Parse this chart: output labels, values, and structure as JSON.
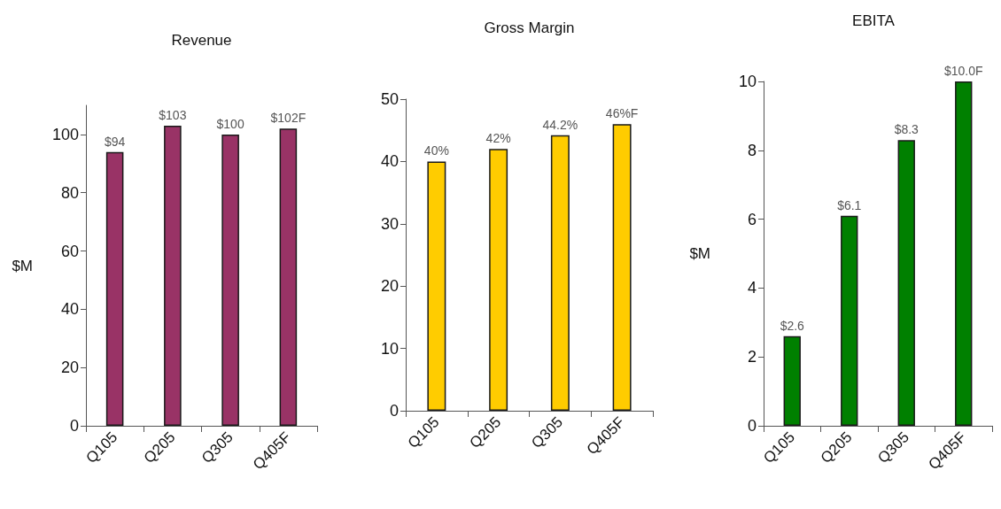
{
  "chart_data": [
    {
      "type": "bar",
      "title": "Revenue",
      "ylabel": "$M",
      "categories": [
        "Q105",
        "Q205",
        "Q305",
        "Q405F"
      ],
      "values": [
        94,
        103,
        100,
        102
      ],
      "value_labels": [
        "$94",
        "$103",
        "$100",
        "$102F"
      ],
      "color": "#993366",
      "ylim": [
        0,
        110
      ],
      "yticks": [
        0,
        20,
        40,
        60,
        80,
        100
      ],
      "grid": false
    },
    {
      "type": "bar",
      "title": "Gross Margin",
      "categories": [
        "Q105",
        "Q205",
        "Q305",
        "Q405F"
      ],
      "values": [
        40,
        42,
        44.2,
        46
      ],
      "value_labels": [
        "40%",
        "42%",
        "44.2%",
        "46%F"
      ],
      "color": "#ffcc00",
      "ylim": [
        0,
        50
      ],
      "yticks": [
        0,
        10,
        20,
        30,
        40,
        50
      ],
      "grid": false
    },
    {
      "type": "bar",
      "title": "EBITA",
      "ylabel": "$M",
      "categories": [
        "Q105",
        "Q205",
        "Q305",
        "Q405F"
      ],
      "values": [
        2.6,
        6.1,
        8.3,
        10.0
      ],
      "value_labels": [
        "$2.6",
        "$6.1",
        "$8.3",
        "$10.0F"
      ],
      "color": "#008000",
      "ylim": [
        0,
        10
      ],
      "yticks": [
        0,
        2,
        4,
        6,
        8,
        10
      ],
      "grid": false
    }
  ]
}
